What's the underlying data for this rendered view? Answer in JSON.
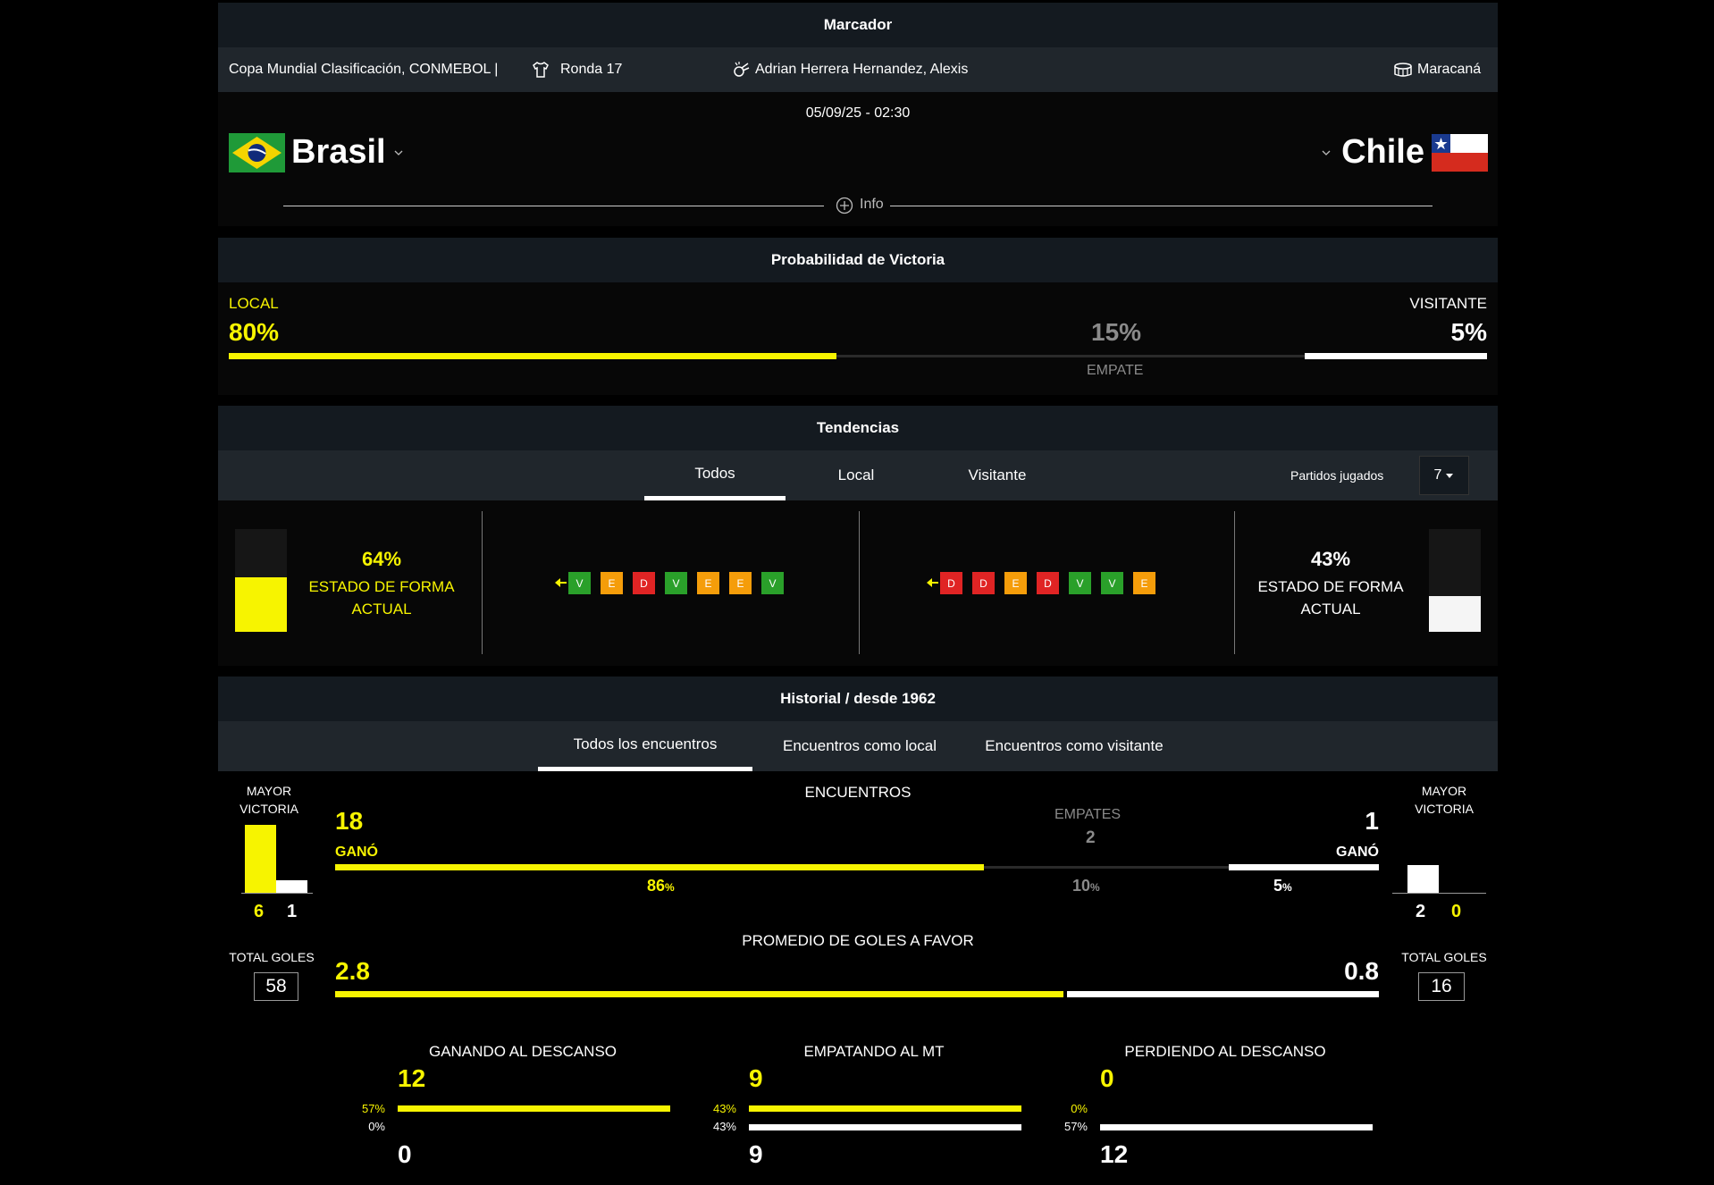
{
  "header": {
    "title": "Marcador",
    "competition": "Copa Mundial Clasificación, CONMEBOL |",
    "round": "Ronda 17",
    "referees": "Adrian Herrera Hernandez, Alexis",
    "stadium": "Maracaná",
    "datetime": "05/09/25 - 02:30",
    "home_team": "Brasil",
    "away_team": "Chile",
    "info_label": "Info"
  },
  "probability": {
    "title": "Probabilidad de Victoria",
    "home_label": "LOCAL",
    "home_value": "80%",
    "draw_value": "15%",
    "draw_label": "EMPATE",
    "away_label": "VISITANTE",
    "away_value": "5%",
    "home_fraction": 0.8,
    "draw_fraction": 0.15,
    "away_fraction": 0.05
  },
  "trends": {
    "title": "Tendencias",
    "tabs": [
      "Todos",
      "Local",
      "Visitante"
    ],
    "active_tab": 0,
    "matches_label": "Partidos jugados",
    "matches_value": "7",
    "home_form_value": "64%",
    "home_form_label": "ESTADO DE FORMA ACTUAL",
    "home_form_fraction": 0.64,
    "away_form_value": "43%",
    "away_form_label": "ESTADO DE FORMA ACTUAL",
    "away_form_fraction": 0.43,
    "home_results": [
      "V",
      "E",
      "D",
      "V",
      "E",
      "E",
      "V"
    ],
    "away_results": [
      "D",
      "D",
      "E",
      "D",
      "V",
      "V",
      "E"
    ]
  },
  "history": {
    "title": "Historial / desde 1962",
    "tabs": [
      "Todos los encuentros",
      "Encuentros como local",
      "Encuentros como visitante"
    ],
    "active_tab": 0,
    "mayor_victoria_label": "MAYOR VICTORIA",
    "home_mayor": [
      "6",
      "1"
    ],
    "away_mayor": [
      "2",
      "0"
    ],
    "encuentros_label": "ENCUENTROS",
    "home_wins": "18",
    "home_won_label": "GANÓ",
    "home_pct": "86",
    "empates_label": "EMPATES",
    "draws": "2",
    "draw_pct": "10",
    "away_wins": "1",
    "away_won_label": "GANÓ",
    "away_pct": "5",
    "pct_sign": "%",
    "home_wins_fraction": 0.86,
    "draw_fraction": 0.1,
    "away_wins_fraction": 0.05,
    "promedio_label": "PROMEDIO DE GOLES A FAVOR",
    "home_avg": "2.8",
    "away_avg": "0.8",
    "total_goles_label": "TOTAL GOLES",
    "home_total_goals": "58",
    "away_total_goals": "16",
    "halftime": [
      {
        "label": "GANANDO AL DESCANSO",
        "top_value": "12",
        "top_pct": "57%",
        "bottom_pct": "0%",
        "bottom_value": "0",
        "top_fraction": 1.0,
        "bottom_fraction": 0.0
      },
      {
        "label": "EMPATANDO AL MT",
        "top_value": "9",
        "top_pct": "43%",
        "bottom_pct": "43%",
        "bottom_value": "9",
        "top_fraction": 1.0,
        "bottom_fraction": 1.0
      },
      {
        "label": "PERDIENDO AL DESCANSO",
        "top_value": "0",
        "top_pct": "0%",
        "bottom_pct": "57%",
        "bottom_value": "12",
        "top_fraction": 0.0,
        "bottom_fraction": 1.0
      }
    ]
  },
  "colors": {
    "home": "#f7f400",
    "away": "#ffffff",
    "win": "#2aa02a",
    "draw": "#f59d0a",
    "loss": "#e02424"
  }
}
